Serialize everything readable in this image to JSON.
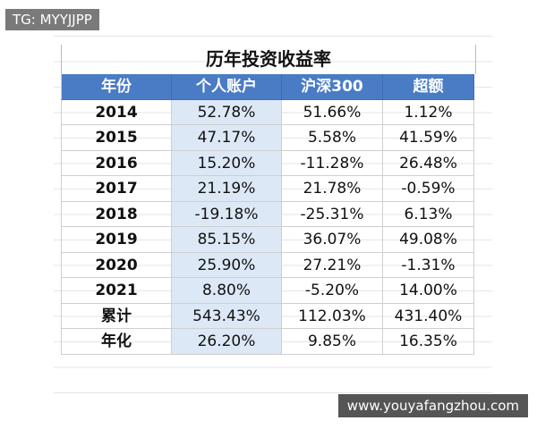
{
  "watermark": "TG: MYYJJPP",
  "table": {
    "title": "历年投资收益率",
    "header": [
      "年份",
      "个人账户",
      "沪深300",
      "超额"
    ],
    "rows": [
      [
        "2014",
        "52.78%",
        "51.66%",
        "1.12%"
      ],
      [
        "2015",
        "47.17%",
        "5.58%",
        "41.59%"
      ],
      [
        "2016",
        "15.20%",
        "-11.28%",
        "26.48%"
      ],
      [
        "2017",
        "21.19%",
        "21.78%",
        "-0.59%"
      ],
      [
        "2018",
        "-19.18%",
        "-25.31%",
        "6.13%"
      ],
      [
        "2019",
        "85.15%",
        "36.07%",
        "49.08%"
      ],
      [
        "2020",
        "25.90%",
        "27.21%",
        "-1.31%"
      ],
      [
        "2021",
        "8.80%",
        "-5.20%",
        "14.00%"
      ],
      [
        "累计",
        "543.43%",
        "112.03%",
        "431.40%"
      ],
      [
        "年化",
        "26.20%",
        "9.85%",
        "16.35%"
      ]
    ]
  },
  "footer": "www.youyafangzhou.com"
}
